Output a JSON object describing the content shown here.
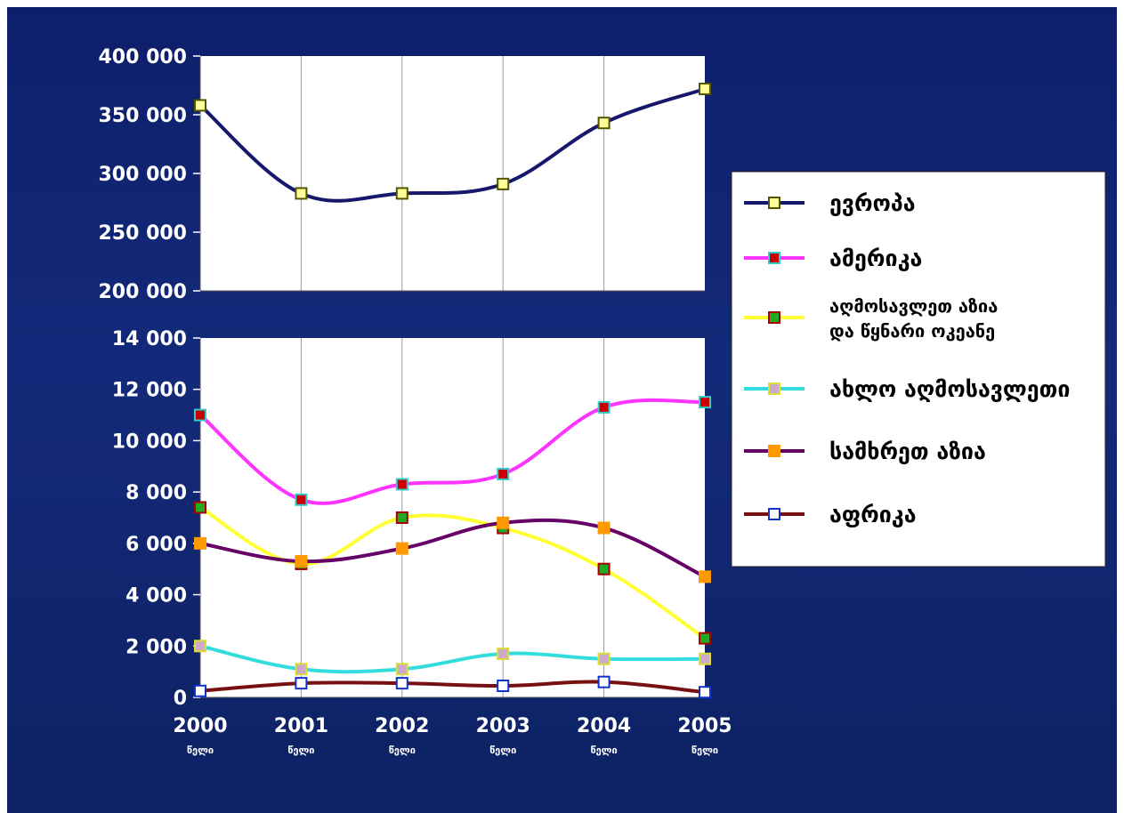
{
  "chart_data": [
    {
      "type": "line",
      "ylim": [
        200000,
        400000
      ],
      "yticks": [
        "400 000",
        "350 000",
        "300 000",
        "250 000",
        "200 000"
      ],
      "ytick_values": [
        400000,
        350000,
        300000,
        250000,
        200000
      ],
      "x": [
        2000,
        2001,
        2002,
        2003,
        2004,
        2005
      ],
      "series": [
        {
          "name": "ევროპა",
          "values": [
            358000,
            283000,
            283000,
            291000,
            343000,
            372000
          ],
          "color": "#16196b",
          "marker_fill": "#ffff99",
          "marker_edge": "#555500"
        }
      ]
    },
    {
      "type": "line",
      "ylim": [
        0,
        14000
      ],
      "yticks": [
        "14 000",
        "12 000",
        "10 000",
        "8 000",
        "6 000",
        "4 000",
        "2 000",
        "0"
      ],
      "ytick_values": [
        14000,
        12000,
        10000,
        8000,
        6000,
        4000,
        2000,
        0
      ],
      "x": [
        2000,
        2001,
        2002,
        2003,
        2004,
        2005
      ],
      "xticks": [
        "2000",
        "2001",
        "2002",
        "2003",
        "2004",
        "2005"
      ],
      "xsub": "წელი",
      "series": [
        {
          "name": "ამერიკა",
          "values": [
            11000,
            7700,
            8300,
            8700,
            11300,
            11500
          ],
          "color": "#ff33ff",
          "marker_fill": "#cc0000",
          "marker_edge": "#33cccc"
        },
        {
          "name": "აღმოსავლეთ აზია და წყნარი ოკეანე",
          "values": [
            7400,
            5200,
            7000,
            6600,
            5000,
            2300
          ],
          "color": "#ffff33",
          "marker_fill": "#22aa22",
          "marker_edge": "#aa0000"
        },
        {
          "name": "ახლო აღმოსავლეთი",
          "values": [
            2000,
            1100,
            1100,
            1700,
            1500,
            1500
          ],
          "color": "#33dddd",
          "marker_fill": "#ccaacc",
          "marker_edge": "#dddd33"
        },
        {
          "name": "სამხრეთ აზია",
          "values": [
            6000,
            5300,
            5800,
            6800,
            6600,
            4700
          ],
          "color": "#660066",
          "marker_fill": "#ff9900",
          "marker_edge": "#ff9900"
        },
        {
          "name": "აფრიკა",
          "values": [
            250,
            550,
            550,
            450,
            600,
            200
          ],
          "color": "#771111",
          "marker_fill": "#ffffff",
          "marker_edge": "#1133cc"
        }
      ]
    }
  ],
  "legend": {
    "items": [
      {
        "line1": "ევროპა",
        "line2": ""
      },
      {
        "line1": "ამერიკა",
        "line2": ""
      },
      {
        "line1": "აღმოსავლეთ აზია",
        "line2": "და წყნარი ოკეანე"
      },
      {
        "line1": "ახლო აღმოსავლეთი",
        "line2": ""
      },
      {
        "line1": "სამხრეთ აზია",
        "line2": ""
      },
      {
        "line1": "აფრიკა",
        "line2": ""
      }
    ]
  }
}
